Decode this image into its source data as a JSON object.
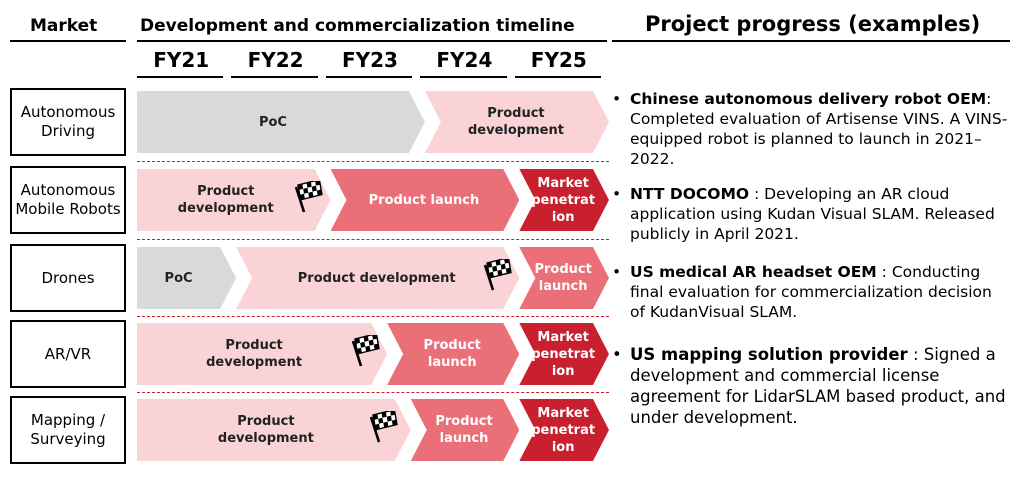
{
  "headers": {
    "market": "Market",
    "timeline": "Development and commercialization timeline",
    "progress": "Project progress (examples)"
  },
  "fiscal_years": [
    "FY21",
    "FY22",
    "FY23",
    "FY24",
    "FY25"
  ],
  "colors": {
    "poc": "#d9d9d9",
    "development": "#f9d3d6",
    "launch": "#ea6f79",
    "penetration": "#c8202f",
    "separator": "#c8202f"
  },
  "markets": [
    {
      "name": "Autonomous\nDriving",
      "phases": [
        {
          "label": "PoC",
          "kind": "poc",
          "start_fy": 0,
          "end_fy": 3.05
        },
        {
          "label": "Product development",
          "kind": "development",
          "start_fy": 3.05,
          "end_fy": 5
        }
      ],
      "flag_fy": null
    },
    {
      "name": "Autonomous\nMobile Robots",
      "phases": [
        {
          "label": "Product\ndevelopment",
          "kind": "development",
          "start_fy": 0,
          "end_fy": 2.05
        },
        {
          "label": "Product launch",
          "kind": "launch",
          "start_fy": 2.05,
          "end_fy": 4.05
        },
        {
          "label": "Market\npenetrat\nion",
          "kind": "penetration",
          "start_fy": 4.05,
          "end_fy": 5
        }
      ],
      "flag_fy": 1.8
    },
    {
      "name": "Drones",
      "phases": [
        {
          "label": "PoC",
          "kind": "poc",
          "start_fy": 0,
          "end_fy": 1.05
        },
        {
          "label": "Product development",
          "kind": "development",
          "start_fy": 1.05,
          "end_fy": 4.05
        },
        {
          "label": "Product\nlaunch",
          "kind": "launch",
          "start_fy": 4.05,
          "end_fy": 5
        }
      ],
      "flag_fy": 3.8
    },
    {
      "name": "AR/VR",
      "phases": [
        {
          "label": "Product\ndevelopment",
          "kind": "development",
          "start_fy": 0,
          "end_fy": 2.65
        },
        {
          "label": "Product\nlaunch",
          "kind": "launch",
          "start_fy": 2.65,
          "end_fy": 4.05
        },
        {
          "label": "Market\npenetrat\nion",
          "kind": "penetration",
          "start_fy": 4.05,
          "end_fy": 5
        }
      ],
      "flag_fy": 2.4
    },
    {
      "name": "Mapping /\nSurveying",
      "phases": [
        {
          "label": "Product\ndevelopment",
          "kind": "development",
          "start_fy": 0,
          "end_fy": 2.9
        },
        {
          "label": "Product\nlaunch",
          "kind": "launch",
          "start_fy": 2.9,
          "end_fy": 4.05
        },
        {
          "label": "Market\npenetrat\nion",
          "kind": "penetration",
          "start_fy": 4.05,
          "end_fy": 5
        }
      ],
      "flag_fy": 2.6
    }
  ],
  "progress": [
    {
      "bold": "Chinese autonomous delivery robot OEM",
      "text": ": Completed evaluation of Artisense VINS. A VINS-equipped robot is planned to launch in 2021–2022."
    },
    {
      "bold": "NTT DOCOMO",
      "text": " : Developing an AR cloud application using Kudan Visual SLAM. Released publicly in April 2021."
    },
    {
      "bold": "US medical AR headset OEM",
      "text": " : Conducting final evaluation for commercialization decision of KudanVisual SLAM."
    },
    {
      "bold": "US mapping solution provider",
      "text": " : Signed a development and commercial license agreement for LidarSLAM based product, and under development."
    }
  ],
  "bullet": "•",
  "flag_icon": "checkered-flag-icon"
}
